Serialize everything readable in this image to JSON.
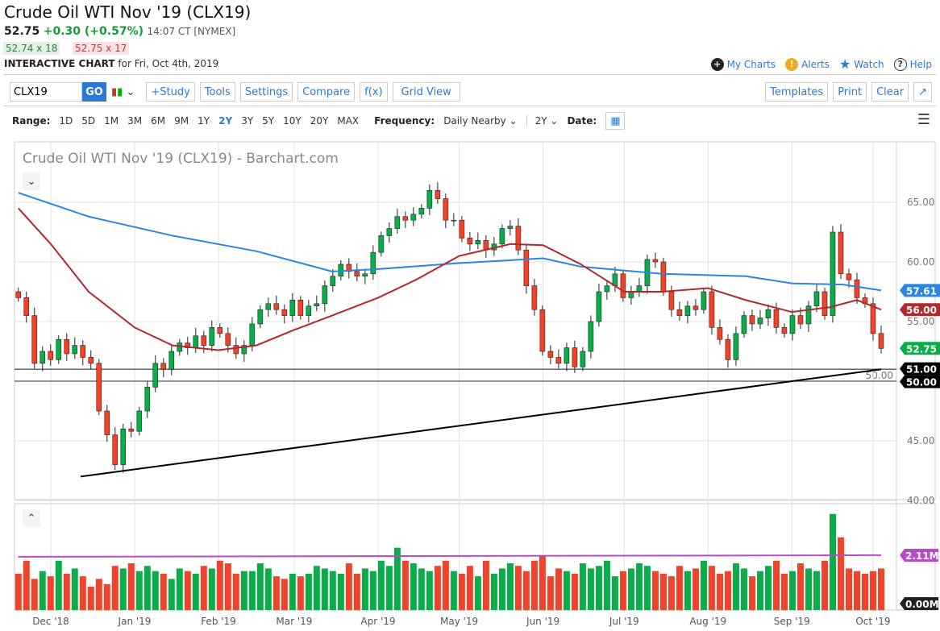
{
  "header": {
    "title": "Crude Oil WTI Nov '19 (CLX19)",
    "last": "52.75",
    "change": "+0.30 (+0.57%)",
    "time": "14:07 CT [NYMEX]",
    "bid": "52.74 x 18",
    "ask": "52.75 x 17",
    "chart_label": "INTERACTIVE CHART",
    "chart_date": "for Fri, Oct 4th, 2019"
  },
  "top_links": [
    {
      "label": "My Charts",
      "icon": "plus-circle-icon"
    },
    {
      "label": "Alerts",
      "icon": "alert-icon"
    },
    {
      "label": "Watch",
      "icon": "star-icon"
    },
    {
      "label": "Help",
      "icon": "help-icon"
    }
  ],
  "toolbar": {
    "symbol": "CLX19",
    "go": "GO",
    "buttons": [
      "+Study",
      "Tools",
      "Settings",
      "Compare",
      "f(x)",
      "Grid View"
    ],
    "right_buttons": [
      "Templates",
      "Print",
      "Clear"
    ]
  },
  "range": {
    "label": "Range:",
    "items": [
      "1D",
      "5D",
      "1M",
      "3M",
      "6M",
      "9M",
      "1Y",
      "2Y",
      "3Y",
      "5Y",
      "10Y",
      "20Y",
      "MAX"
    ],
    "selected": "2Y",
    "frequency_label": "Frequency:",
    "frequency": "Daily Nearby",
    "period": "2Y",
    "date_label": "Date:"
  },
  "colors": {
    "up": "#0aad4a",
    "down": "#f0432a",
    "ma200": "#2a86e0",
    "ma50": "#b3282d",
    "volavg": "#b94bc9",
    "accent": "#2a7ad3"
  },
  "chart_data": {
    "type": "candlestick",
    "title": "Crude Oil WTI Nov '19 (CLX19) - Barchart.com",
    "x_start": "2018-11-19",
    "x_end": "2019-10-04",
    "x_ticks": [
      [
        "2018-12-01",
        "Dec '18"
      ],
      [
        "2019-01-01",
        "Jan '19"
      ],
      [
        "2019-02-01",
        "Feb '19"
      ],
      [
        "2019-03-01",
        "Mar '19"
      ],
      [
        "2019-04-01",
        "Apr '19"
      ],
      [
        "2019-05-01",
        "May '19"
      ],
      [
        "2019-06-01",
        "Jun '19"
      ],
      [
        "2019-07-01",
        "Jul '19"
      ],
      [
        "2019-08-01",
        "Aug '19"
      ],
      [
        "2019-09-01",
        "Sep '19"
      ],
      [
        "2019-10-01",
        "Oct '19"
      ]
    ],
    "y_ticks": [
      "65.00",
      "60.00",
      "55.00",
      "50.00",
      "45.00",
      "40.00"
    ],
    "ylim": [
      40,
      70
    ],
    "closes": [
      57.0,
      55.5,
      51.5,
      52.5,
      51.8,
      53.5,
      52.3,
      53.0,
      52.0,
      51.5,
      47.5,
      45.5,
      43.0,
      46.0,
      45.8,
      47.5,
      49.5,
      51.5,
      51.0,
      52.5,
      53.2,
      52.8,
      53.8,
      53.0,
      54.5,
      54.0,
      53.0,
      52.3,
      53.0,
      54.8,
      56.0,
      56.5,
      56.0,
      55.5,
      56.8,
      55.5,
      56.3,
      56.5,
      58.0,
      58.8,
      59.8,
      59.2,
      58.8,
      59.0,
      60.8,
      62.2,
      62.8,
      63.8,
      63.5,
      64.0,
      64.5,
      66.0,
      65.3,
      63.5,
      63.5,
      62.0,
      61.5,
      61.8,
      61.0,
      61.5,
      62.8,
      63.0,
      61.0,
      58.0,
      56.0,
      52.5,
      52.0,
      51.5,
      52.8,
      51.2,
      52.5,
      55.0,
      57.5,
      58.0,
      59.0,
      57.0,
      57.5,
      58.0,
      60.2,
      60.0,
      57.5,
      56.0,
      55.5,
      56.3,
      56.0,
      57.5,
      54.5,
      53.5,
      51.8,
      54.0,
      55.5,
      54.8,
      55.3,
      56.0,
      54.5,
      54.0,
      55.5,
      54.8,
      56.3,
      57.5,
      55.5,
      62.5,
      59.0,
      58.5,
      57.0,
      56.5,
      54.0,
      52.75
    ],
    "volume_m": [
      1.4,
      1.9,
      1.2,
      1.5,
      1.3,
      1.9,
      1.4,
      1.6,
      1.3,
      0.9,
      1.2,
      1.0,
      1.7,
      1.6,
      1.8,
      1.5,
      1.7,
      1.5,
      1.4,
      1.2,
      1.6,
      1.5,
      1.4,
      1.7,
      1.6,
      1.9,
      1.8,
      1.4,
      1.5,
      1.5,
      1.8,
      1.6,
      1.3,
      1.2,
      1.4,
      1.3,
      1.4,
      1.7,
      1.6,
      1.5,
      1.4,
      1.8,
      1.4,
      1.6,
      1.5,
      1.9,
      1.7,
      2.4,
      1.9,
      1.8,
      1.6,
      1.5,
      1.7,
      1.9,
      1.5,
      1.4,
      1.7,
      1.3,
      1.9,
      1.4,
      1.6,
      1.8,
      1.7,
      1.5,
      1.9,
      2.1,
      1.3,
      1.6,
      1.5,
      1.4,
      1.8,
      1.6,
      1.7,
      1.9,
      1.3,
      1.5,
      1.6,
      1.8,
      1.7,
      1.5,
      1.4,
      1.3,
      1.7,
      1.5,
      1.6,
      1.9,
      1.7,
      1.4,
      1.5,
      1.8,
      1.6,
      1.3,
      1.5,
      1.7,
      1.9,
      1.4,
      1.5,
      1.8,
      1.6,
      1.5,
      1.9,
      3.7,
      2.8,
      1.6,
      1.5,
      1.4,
      1.5,
      1.6
    ],
    "volume_labels": [
      "2.11M",
      "0.00M"
    ],
    "volume_avg_m": 2.05,
    "ma200": [
      [
        "2018-11-19",
        65.8
      ],
      [
        "2018-12-15",
        63.8
      ],
      [
        "2019-01-15",
        62.2
      ],
      [
        "2019-02-15",
        60.9
      ],
      [
        "2019-03-15",
        59.2
      ],
      [
        "2019-04-01",
        59.4
      ],
      [
        "2019-05-01",
        59.9
      ],
      [
        "2019-06-01",
        60.3
      ],
      [
        "2019-06-15",
        59.6
      ],
      [
        "2019-07-15",
        59.0
      ],
      [
        "2019-08-15",
        58.8
      ],
      [
        "2019-09-01",
        58.2
      ],
      [
        "2019-09-20",
        58.1
      ],
      [
        "2019-10-04",
        57.61
      ]
    ],
    "ma50": [
      [
        "2018-11-19",
        64.5
      ],
      [
        "2018-12-01",
        61.5
      ],
      [
        "2018-12-15",
        57.5
      ],
      [
        "2019-01-01",
        54.5
      ],
      [
        "2019-01-15",
        53.0
      ],
      [
        "2019-02-01",
        52.6
      ],
      [
        "2019-02-15",
        53.0
      ],
      [
        "2019-03-01",
        54.3
      ],
      [
        "2019-03-15",
        55.5
      ],
      [
        "2019-04-01",
        57.0
      ],
      [
        "2019-04-15",
        58.5
      ],
      [
        "2019-05-01",
        60.5
      ],
      [
        "2019-05-20",
        61.5
      ],
      [
        "2019-06-01",
        61.4
      ],
      [
        "2019-06-15",
        59.8
      ],
      [
        "2019-07-01",
        57.5
      ],
      [
        "2019-07-15",
        57.5
      ],
      [
        "2019-08-01",
        57.8
      ],
      [
        "2019-08-15",
        56.8
      ],
      [
        "2019-09-01",
        55.8
      ],
      [
        "2019-09-15",
        56.2
      ],
      [
        "2019-09-25",
        56.8
      ],
      [
        "2019-10-04",
        56.0
      ]
    ],
    "trendline": [
      [
        "2018-12-12",
        42.0
      ],
      [
        "2019-10-04",
        51.0
      ]
    ],
    "hlines": [
      51.0,
      50.0
    ],
    "price_labels": [
      {
        "value": 57.61,
        "text": "57.61",
        "color": "#2a86e0"
      },
      {
        "value": 56.0,
        "text": "56.00",
        "color": "#b3282d"
      },
      {
        "value": 52.75,
        "text": "52.75",
        "color": "#0aad4a"
      },
      {
        "value": 51.0,
        "text": "51.00",
        "color": "#000000"
      },
      {
        "value": 50.0,
        "text": "50.00",
        "color": "#000000"
      }
    ]
  }
}
